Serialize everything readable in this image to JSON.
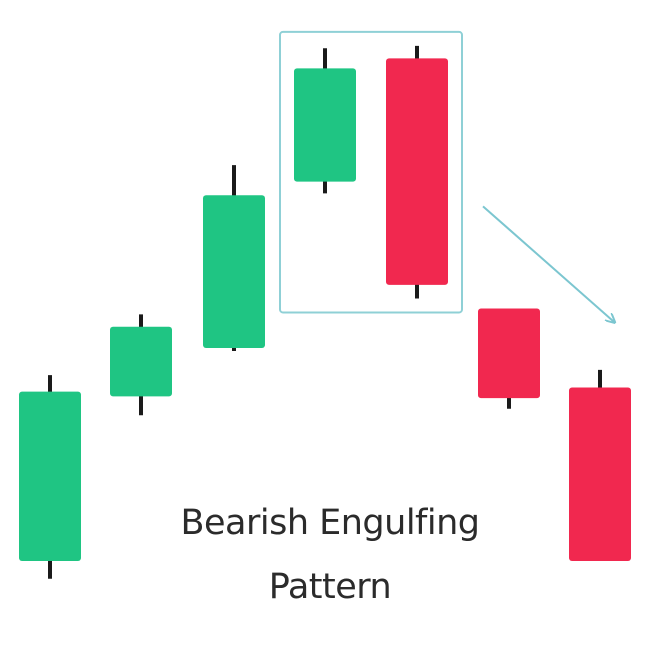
{
  "chart_data": {
    "type": "candlestick",
    "title_lines": [
      "Bearish Engulfing",
      "Pattern"
    ],
    "xlabel": "",
    "ylabel": "",
    "ylim": [
      0,
      100
    ],
    "grid": false,
    "legend": "none",
    "colors": {
      "bullish": "#1fc583",
      "bearish": "#f1284f",
      "wick": "#1a1a1a",
      "highlight": "#8fd0d6",
      "arrow": "#7cc6d0"
    },
    "candles": [
      {
        "direction": "bullish",
        "open": 10.0,
        "close": 38.7,
        "high": 41.5,
        "low": 7.0
      },
      {
        "direction": "bullish",
        "open": 37.9,
        "close": 49.7,
        "high": 51.8,
        "low": 34.7
      },
      {
        "direction": "bullish",
        "open": 46.1,
        "close": 72.0,
        "high": 77.1,
        "low": 45.6
      },
      {
        "direction": "bullish",
        "open": 74.3,
        "close": 93.5,
        "high": 96.9,
        "low": 72.3
      },
      {
        "direction": "bearish",
        "open": 95.2,
        "close": 56.8,
        "high": 97.3,
        "low": 54.5
      },
      {
        "direction": "bearish",
        "open": 52.8,
        "close": 37.6,
        "high": 52.8,
        "low": 35.8
      },
      {
        "direction": "bearish",
        "open": 39.4,
        "close": 10.0,
        "high": 42.4,
        "low": 10.0
      }
    ],
    "highlight": {
      "from_candle": 3,
      "to_candle": 4
    },
    "trend_arrow": {
      "from_candle": 5,
      "to_candle": 6,
      "direction": "down"
    }
  }
}
